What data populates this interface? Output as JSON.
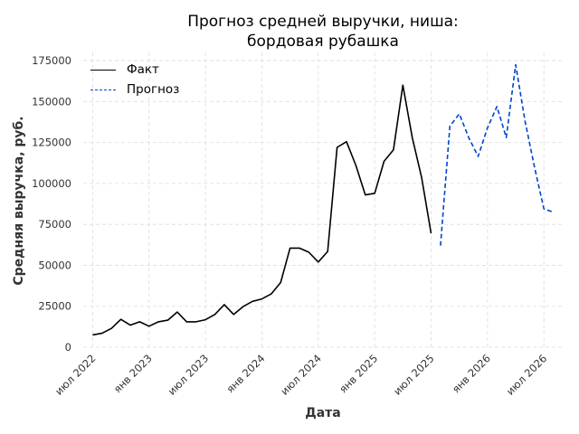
{
  "chart_data": {
    "type": "line",
    "title_line1": "Прогноз средней выручки, ниша:",
    "title_line2": "бордовая рубашка",
    "xlabel": "Дата",
    "ylabel": "Средняя выручка, руб.",
    "ylim": [
      0,
      180000
    ],
    "y_ticks": [
      0,
      25000,
      50000,
      75000,
      100000,
      125000,
      150000,
      175000
    ],
    "x_ticks": [
      {
        "label": "июл 2022",
        "date": "2022-07"
      },
      {
        "label": "янв 2023",
        "date": "2023-01"
      },
      {
        "label": "июл 2023",
        "date": "2023-07"
      },
      {
        "label": "янв 2024",
        "date": "2024-01"
      },
      {
        "label": "июл 2024",
        "date": "2024-07"
      },
      {
        "label": "янв 2025",
        "date": "2025-01"
      },
      {
        "label": "июл 2025",
        "date": "2025-07"
      },
      {
        "label": "янв 2026",
        "date": "2026-01"
      },
      {
        "label": "июл 2026",
        "date": "2026-07"
      }
    ],
    "grid": true,
    "legend_position": "top-left",
    "series": [
      {
        "name": "Факт",
        "color": "#000000",
        "style": "solid",
        "x": [
          "2022-07",
          "2022-08",
          "2022-09",
          "2022-10",
          "2022-11",
          "2022-12",
          "2023-01",
          "2023-02",
          "2023-03",
          "2023-04",
          "2023-05",
          "2023-06",
          "2023-07",
          "2023-08",
          "2023-09",
          "2023-10",
          "2023-11",
          "2023-12",
          "2024-01",
          "2024-02",
          "2024-03",
          "2024-04",
          "2024-05",
          "2024-06",
          "2024-07",
          "2024-08",
          "2024-09",
          "2024-10",
          "2024-11",
          "2024-12",
          "2025-01",
          "2025-02",
          "2025-03",
          "2025-04",
          "2025-05",
          "2025-06",
          "2025-07"
        ],
        "values": [
          7500,
          8500,
          11500,
          17000,
          13500,
          15500,
          12800,
          15500,
          16500,
          21500,
          15500,
          15500,
          16800,
          20000,
          26000,
          20000,
          24800,
          28000,
          29500,
          32500,
          39500,
          60500,
          60500,
          58000,
          52000,
          58500,
          122000,
          125500,
          111000,
          93000,
          94000,
          113500,
          120500,
          160000,
          128000,
          103500,
          69500
        ]
      },
      {
        "name": "Прогноз",
        "color": "#0044cc",
        "style": "dashed",
        "x": [
          "2025-08",
          "2025-09",
          "2025-10",
          "2025-11",
          "2025-12",
          "2026-01",
          "2026-02",
          "2026-03",
          "2026-04",
          "2026-05",
          "2026-06",
          "2026-07",
          "2026-08"
        ],
        "values": [
          62000,
          135000,
          142500,
          128000,
          116500,
          134000,
          147000,
          128000,
          172500,
          138000,
          110000,
          84500,
          82500
        ]
      }
    ]
  }
}
